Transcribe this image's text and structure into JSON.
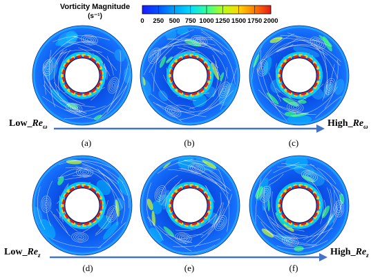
{
  "colorbar": {
    "title_line1": "Vorticity Magnitude",
    "title_line2": "(s⁻¹)",
    "ticks": [
      "0",
      "250",
      "500",
      "750",
      "1000",
      "1250",
      "1500",
      "1750",
      "2000"
    ],
    "colors": [
      "#1a1aff",
      "#0055ff",
      "#00a0ff",
      "#00dcff",
      "#33ff99",
      "#b4ff19",
      "#ffd700",
      "#ff7a00",
      "#e61919"
    ]
  },
  "rows": [
    {
      "panels": [
        "(a)",
        "(b)",
        "(c)"
      ],
      "low_prefix": "Low_",
      "low_sym": "Re",
      "low_sub": "ω",
      "high_prefix": "High_",
      "high_sym": "Re",
      "high_sub": "ω"
    },
    {
      "panels": [
        "(d)",
        "(e)",
        "(f)"
      ],
      "low_prefix": "Low_",
      "low_sym": "Re",
      "low_sub": "z",
      "high_prefix": "High_",
      "high_sym": "Re",
      "high_sub": "z"
    }
  ],
  "arrow_color": "#4472c4"
}
